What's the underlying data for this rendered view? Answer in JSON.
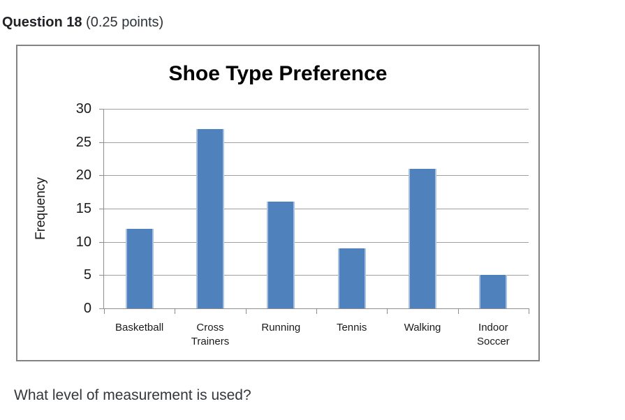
{
  "header": {
    "number": "Question 18",
    "points": "(0.25 points)"
  },
  "question": {
    "text": "What level of measurement is used?"
  },
  "chart_data": {
    "type": "bar",
    "title": "Shoe Type Preference",
    "categories": [
      "Basketball",
      "Cross Trainers",
      "Running",
      "Tennis",
      "Walking",
      "Indoor Soccer"
    ],
    "values": [
      12,
      27,
      16,
      9,
      21,
      5
    ],
    "xlabel": "",
    "ylabel": "Frequency",
    "ylim": [
      0,
      30
    ],
    "ytick_step": 5,
    "grid": "horizontal",
    "legend_position": "none",
    "bar_color": "#4F81BD",
    "bar_edge_color": "#A9C2E1",
    "gridline_color": "#8E8E8E",
    "axis_color": "#8E8E8E"
  },
  "panel": {
    "border_color": "#838383"
  }
}
